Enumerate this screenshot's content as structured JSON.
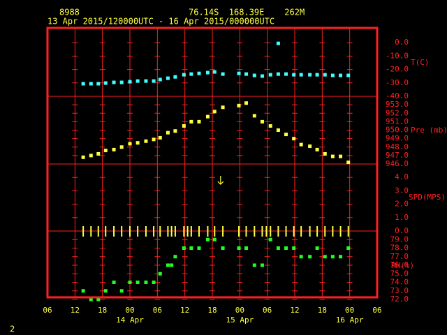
{
  "header": {
    "station": "8988",
    "location": "76.14S  168.39E    262M",
    "period": "13 Apr 2015/120000UTC - 16 Apr 2015/000000UTC"
  },
  "footer": "2",
  "x_axis": {
    "xlim": [
      0,
      72
    ],
    "xticks": [
      {
        "value": 0,
        "label": "06"
      },
      {
        "value": 6,
        "label": "12"
      },
      {
        "value": 12,
        "label": "18"
      },
      {
        "value": 18,
        "label": "00"
      },
      {
        "value": 24,
        "label": "06"
      },
      {
        "value": 30,
        "label": "12"
      },
      {
        "value": 36,
        "label": "18"
      },
      {
        "value": 42,
        "label": "00"
      },
      {
        "value": 48,
        "label": "06"
      },
      {
        "value": 54,
        "label": "12"
      },
      {
        "value": 60,
        "label": "18"
      },
      {
        "value": 66,
        "label": "00"
      },
      {
        "value": 72,
        "label": "06"
      }
    ],
    "date_labels": [
      {
        "value": 18,
        "label": "14 Apr"
      },
      {
        "value": 42,
        "label": "15 Apr"
      },
      {
        "value": 66,
        "label": "16 Apr"
      }
    ]
  },
  "chart_data": [
    {
      "type": "scatter",
      "ylabel": "T(C)",
      "ylim": [
        -40,
        10
      ],
      "yticks": [
        {
          "value": 0,
          "label": "0.0"
        },
        {
          "value": -10,
          "label": "-10.0"
        },
        {
          "value": -20,
          "label": "-20.0"
        },
        {
          "value": -30,
          "label": "-30.0"
        },
        {
          "value": -40,
          "label": "-40.0"
        }
      ],
      "series": [
        {
          "color": "#40ffff",
          "marker": "square",
          "x": [
            7.8,
            9.5,
            11.1,
            12.7,
            14.5,
            16.2,
            18.0,
            19.7,
            21.5,
            23.2,
            24.6,
            26.3,
            27.9,
            29.8,
            31.4,
            33.1,
            35.0,
            36.5,
            38.3,
            41.8,
            43.4,
            45.2,
            46.9,
            48.7,
            50.4,
            52.1,
            53.8,
            55.4,
            57.3,
            58.9,
            60.6,
            62.3,
            64.0,
            65.7
          ],
          "values": [
            -30.6,
            -30.6,
            -30.6,
            -30.1,
            -29.6,
            -29.6,
            -29.1,
            -28.6,
            -28.6,
            -28.6,
            -27.5,
            -26.5,
            -25.5,
            -23.9,
            -23.4,
            -22.9,
            -22.3,
            -21.8,
            -23.4,
            -22.9,
            -23.4,
            -24.4,
            -24.9,
            -23.9,
            -23.4,
            -23.4,
            -23.9,
            -23.9,
            -23.9,
            -23.9,
            -23.9,
            -24.4,
            -24.4,
            -24.4
          ]
        },
        {
          "color": "#40ffff",
          "marker": "square",
          "x": [
            50.4
          ],
          "values": [
            -0.5
          ]
        }
      ]
    },
    {
      "type": "scatter",
      "ylabel": "Pre (mb)",
      "ylim": [
        946,
        954
      ],
      "yticks": [
        {
          "value": 953,
          "label": "953.0"
        },
        {
          "value": 952,
          "label": "952.0"
        },
        {
          "value": 951,
          "label": "951.0"
        },
        {
          "value": 950,
          "label": "950.0"
        },
        {
          "value": 949,
          "label": "949.0"
        },
        {
          "value": 948,
          "label": "948.0"
        },
        {
          "value": 947,
          "label": "947.0"
        },
        {
          "value": 946,
          "label": "946.0"
        }
      ],
      "series": [
        {
          "color": "#ffff40",
          "marker": "square",
          "x": [
            7.8,
            9.5,
            11.1,
            12.7,
            14.5,
            16.2,
            18.0,
            19.7,
            21.5,
            23.2,
            24.6,
            26.3,
            27.9,
            29.8,
            31.4,
            33.1,
            35.0,
            36.5,
            38.3,
            41.8,
            43.4,
            45.2,
            46.9,
            48.7,
            50.4,
            52.1,
            53.8,
            55.4,
            57.3,
            58.9,
            60.6,
            62.3,
            64.0,
            65.7
          ],
          "values": [
            946.8,
            947.0,
            947.2,
            947.6,
            947.7,
            948.0,
            948.4,
            948.5,
            948.7,
            948.9,
            949.1,
            949.7,
            949.9,
            950.5,
            951.0,
            951.0,
            951.6,
            952.2,
            952.7,
            952.9,
            953.2,
            951.7,
            951.0,
            950.5,
            950.0,
            949.5,
            949.0,
            948.3,
            948.1,
            947.7,
            947.2,
            946.9,
            946.9,
            946.2
          ]
        }
      ]
    },
    {
      "type": "scatter",
      "ylabel": "SPD(MPS)",
      "ylim": [
        0,
        5
      ],
      "yticks": [
        {
          "value": 4,
          "label": "4.0"
        },
        {
          "value": 3,
          "label": "3.0"
        },
        {
          "value": 2,
          "label": "2.0"
        },
        {
          "value": 1,
          "label": "1.0"
        },
        {
          "value": 0,
          "label": "0.0"
        }
      ],
      "series": [
        {
          "color": "#ffff40",
          "marker": "bar",
          "x": [
            7.8,
            9.5,
            11.1,
            12.7,
            14.5,
            16.2,
            18.0,
            19.7,
            21.5,
            23.2,
            24.6,
            26.3,
            27.1,
            27.9,
            29.8,
            30.6,
            31.4,
            33.1,
            35.0,
            36.5,
            38.3,
            41.8,
            43.4,
            45.2,
            46.9,
            47.8,
            48.7,
            50.4,
            52.1,
            53.8,
            55.4,
            57.3,
            58.9,
            60.6,
            62.3,
            64.0,
            65.7
          ],
          "values": [
            0,
            0,
            0,
            0,
            0,
            0,
            0,
            0,
            0,
            0,
            0,
            0,
            0,
            0,
            0,
            0,
            0,
            0,
            0,
            0,
            0,
            0,
            0,
            0,
            0,
            0,
            0,
            0,
            0,
            0,
            0,
            0,
            0,
            0,
            0,
            0,
            0
          ]
        },
        {
          "color": "#ffff40",
          "marker": "arrow",
          "x": [
            37.8
          ],
          "values": [
            3.8
          ]
        }
      ]
    },
    {
      "type": "scatter",
      "ylabel": "RH(%)",
      "ylim": [
        72,
        80
      ],
      "yticks": [
        {
          "value": 79,
          "label": "79.0"
        },
        {
          "value": 78,
          "label": "78.0"
        },
        {
          "value": 77,
          "label": "77.0"
        },
        {
          "value": 76,
          "label": "76.0"
        },
        {
          "value": 75,
          "label": "75.0"
        },
        {
          "value": 74,
          "label": "74.0"
        },
        {
          "value": 73,
          "label": "73.0"
        },
        {
          "value": 72,
          "label": "72.0"
        }
      ],
      "series": [
        {
          "color": "#20ff20",
          "marker": "square",
          "x": [
            7.8,
            9.5,
            11.1,
            12.7,
            14.5,
            16.2,
            18.0,
            19.7,
            21.5,
            23.2,
            24.6,
            26.3,
            27.1,
            27.9,
            29.8,
            31.4,
            33.1,
            35.0,
            36.5,
            38.3,
            41.8,
            43.4,
            45.2,
            46.9,
            48.7,
            50.4,
            52.1,
            53.8,
            55.4,
            57.3,
            58.9,
            60.6,
            62.3,
            64.0,
            65.7
          ],
          "values": [
            73,
            72,
            72,
            73,
            74,
            73,
            74,
            74,
            74,
            74,
            75,
            76,
            76,
            77,
            78,
            78,
            78,
            79,
            79,
            78,
            78,
            78,
            76,
            76,
            79,
            78,
            78,
            78,
            77,
            77,
            78,
            77,
            77,
            77,
            78
          ]
        }
      ]
    }
  ]
}
